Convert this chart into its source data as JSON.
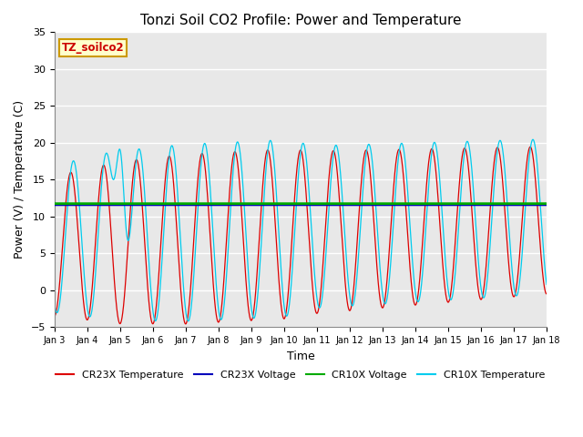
{
  "title": "Tonzi Soil CO2 Profile: Power and Temperature",
  "xlabel": "Time",
  "ylabel": "Power (V) / Temperature (C)",
  "ylim": [
    -5,
    35
  ],
  "xlim": [
    0,
    15
  ],
  "plot_bg_color": "#e8e8e8",
  "annotation_label": "TZ_soilco2",
  "annotation_bg": "#ffffcc",
  "annotation_border": "#cc9900",
  "cr23x_temp_color": "#dd0000",
  "cr23x_volt_color": "#0000bb",
  "cr10x_volt_color": "#00aa00",
  "cr10x_temp_color": "#00ccee",
  "cr23x_volt_value": 11.6,
  "cr10x_volt_value": 11.75,
  "tick_labels": [
    "Jan 3",
    "Jan 4",
    "Jan 5",
    "Jan 6",
    "Jan 7",
    "Jan 8",
    "Jan 9",
    "Jan 10",
    "Jan 11",
    "Jan 12",
    "Jan 13",
    "Jan 14",
    "Jan 15",
    "Jan 16",
    "Jan 17",
    "Jan 18"
  ],
  "yticks": [
    -5,
    0,
    5,
    10,
    15,
    20,
    25,
    30,
    35
  ],
  "legend_entries": [
    "CR23X Temperature",
    "CR23X Voltage",
    "CR10X Voltage",
    "CR10X Temperature"
  ]
}
